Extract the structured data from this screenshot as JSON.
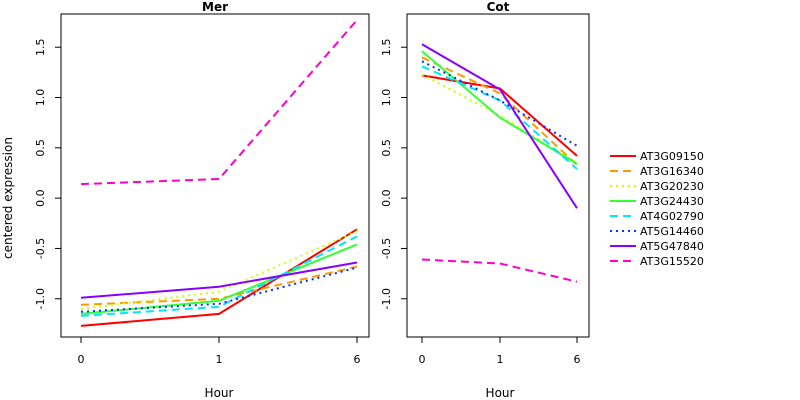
{
  "chart_data": {
    "type": "line",
    "ylabel": "centered expression",
    "legend_position": "right",
    "series_styles": [
      {
        "name": "AT3G09150",
        "color": "#ff0000",
        "dash": "solid"
      },
      {
        "name": "AT3G16340",
        "color": "#ff9900",
        "dash": "dashed"
      },
      {
        "name": "AT3G20230",
        "color": "#ccff00",
        "dash": "dotted"
      },
      {
        "name": "AT3G24430",
        "color": "#33ff33",
        "dash": "solid"
      },
      {
        "name": "AT4G02790",
        "color": "#00e5ff",
        "dash": "dashed"
      },
      {
        "name": "AT5G14460",
        "color": "#0033ff",
        "dash": "dotted"
      },
      {
        "name": "AT5G47840",
        "color": "#8800ff",
        "dash": "solid"
      },
      {
        "name": "AT3G15520",
        "color": "#ff00cc",
        "dash": "dashed"
      }
    ],
    "panels": [
      {
        "title": "Mer",
        "xlabel": "Hour",
        "categories": [
          "0",
          "1",
          "6"
        ],
        "yticks": [
          "-1.0",
          "-0.5",
          "0.0",
          "0.5",
          "1.0",
          "1.5"
        ],
        "ylim": [
          -1.38,
          1.83
        ],
        "series": [
          {
            "name": "AT3G09150",
            "values": [
              -1.27,
              -1.15,
              -0.31
            ]
          },
          {
            "name": "AT3G16340",
            "values": [
              -1.06,
              -1.0,
              -0.68
            ]
          },
          {
            "name": "AT3G20230",
            "values": [
              -1.1,
              -0.93,
              -0.33
            ]
          },
          {
            "name": "AT3G24430",
            "values": [
              -1.15,
              -1.02,
              -0.46
            ]
          },
          {
            "name": "AT4G02790",
            "values": [
              -1.17,
              -1.08,
              -0.38
            ]
          },
          {
            "name": "AT5G14460",
            "values": [
              -1.13,
              -1.05,
              -0.69
            ]
          },
          {
            "name": "AT5G47840",
            "values": [
              -0.99,
              -0.88,
              -0.64
            ]
          },
          {
            "name": "AT3G15520",
            "values": [
              0.14,
              0.19,
              1.77
            ]
          }
        ]
      },
      {
        "title": "Cot",
        "xlabel": "Hour",
        "categories": [
          "0",
          "1",
          "6"
        ],
        "yticks": [
          "-1.0",
          "-0.5",
          "0.0",
          "0.5",
          "1.0",
          "1.5"
        ],
        "ylim": [
          -1.38,
          1.83
        ],
        "series": [
          {
            "name": "AT3G09150",
            "values": [
              1.22,
              1.09,
              0.42
            ]
          },
          {
            "name": "AT3G16340",
            "values": [
              1.4,
              1.04,
              0.33
            ]
          },
          {
            "name": "AT3G20230",
            "values": [
              1.23,
              0.82,
              0.35
            ]
          },
          {
            "name": "AT3G24430",
            "values": [
              1.46,
              0.8,
              0.34
            ]
          },
          {
            "name": "AT4G02790",
            "values": [
              1.31,
              0.97,
              0.29
            ]
          },
          {
            "name": "AT5G14460",
            "values": [
              1.36,
              0.97,
              0.52
            ]
          },
          {
            "name": "AT5G47840",
            "values": [
              1.53,
              1.08,
              -0.1
            ]
          },
          {
            "name": "AT3G15520",
            "values": [
              -0.61,
              -0.65,
              -0.83
            ]
          }
        ]
      }
    ]
  }
}
